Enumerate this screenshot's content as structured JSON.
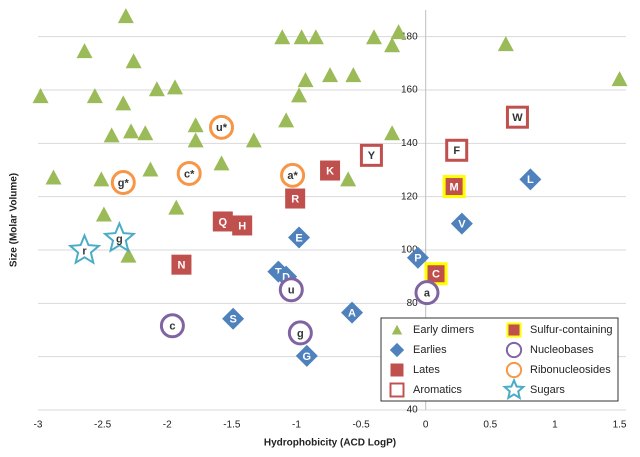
{
  "chart_data": {
    "type": "scatter",
    "x_label": "Hydrophobicity (ACD LogP)",
    "y_label": "Size (Molar Volume)",
    "xlim": [
      -3,
      1.55
    ],
    "ylim": [
      40,
      190
    ],
    "xticks": [
      -3,
      -2.5,
      -2,
      -1.5,
      -1,
      -0.5,
      0,
      0.5,
      1,
      1.5
    ],
    "yticks": [
      40,
      60,
      80,
      100,
      120,
      140,
      160,
      180
    ],
    "grid": true,
    "legend": "lower right",
    "series": [
      {
        "name": "Early dimers",
        "marker": "triangle",
        "color": "#9bbb59",
        "x": [
          -2.32,
          -2.64,
          -2.26,
          -2.98,
          -2.56,
          -2.34,
          -2.08,
          -1.94,
          -1.11,
          -0.96,
          -0.85,
          -0.4,
          -0.21,
          -0.26,
          -0.74,
          -0.56,
          -0.93,
          -0.98,
          -1.08,
          -1.33,
          -1.78,
          -1.78,
          -2.28,
          -2.43,
          -2.17,
          -1.58,
          -2.13,
          -2.51,
          -2.88,
          -0.6,
          -0.26,
          -1.93,
          -2.49,
          -2.3,
          1.5,
          0.62
        ],
        "values": [
          187.7,
          174.6,
          170.8,
          157.7,
          157.7,
          155,
          160.3,
          161,
          179.8,
          179.8,
          179.8,
          179.8,
          181.7,
          176.8,
          165.6,
          165.6,
          163.7,
          158,
          148.6,
          141.1,
          146.8,
          141.1,
          144.5,
          143,
          143.8,
          132.5,
          130.2,
          126.5,
          127.2,
          126.5,
          143.8,
          115.9,
          113.3,
          97.9,
          164.1,
          177.2
        ]
      },
      {
        "name": "Earlies",
        "marker": "diamond",
        "color": "#4f81bd",
        "x": [
          0.81,
          0.28,
          -0.98,
          -0.06,
          -1.14,
          -1.08,
          -0.57,
          -1.49,
          -0.92
        ],
        "values": [
          126.5,
          109.9,
          104.7,
          97.1,
          91.9,
          90,
          76.5,
          74.2,
          60.3
        ],
        "labels": [
          "L",
          "V",
          "E",
          "P",
          "T",
          "D",
          "A",
          "S",
          "G"
        ]
      },
      {
        "name": "Lates",
        "marker": "square",
        "color": "#c0504d",
        "x": [
          -0.74,
          -1.01,
          -1.57,
          -1.42,
          -1.89
        ],
        "values": [
          129.8,
          119.3,
          110.7,
          109.2,
          94.5
        ],
        "labels": [
          "K",
          "R",
          "Q",
          "H",
          "N"
        ]
      },
      {
        "name": "Aromatics",
        "marker": "open-square",
        "color": "#c0504d",
        "x": [
          0.71,
          0.24,
          -0.42
        ],
        "values": [
          149.8,
          137.4,
          135.5
        ],
        "labels": [
          "W",
          "F",
          "Y"
        ]
      },
      {
        "name": "Sulfur-containing",
        "marker": "sulfur-square",
        "color": "#c0504d",
        "x": [
          0.22,
          0.08
        ],
        "values": [
          123.8,
          91.1
        ],
        "labels": [
          "M",
          "C"
        ]
      },
      {
        "name": "Nucleobases",
        "marker": "circle",
        "color": "#8064a2",
        "x": [
          -1.04,
          0.01,
          -1.96,
          -0.97
        ],
        "values": [
          85.1,
          84,
          71.6,
          68.9
        ],
        "labels": [
          "u",
          "a",
          "c",
          "g"
        ]
      },
      {
        "name": "Ribonucleosides",
        "marker": "circle",
        "color": "#f79646",
        "x": [
          -1.58,
          -1.83,
          -1.03,
          -2.34
        ],
        "values": [
          146,
          128.7,
          128,
          125.3
        ],
        "labels": [
          "u*",
          "c*",
          "a*",
          "g*"
        ]
      },
      {
        "name": "Sugars",
        "marker": "star",
        "color": "#4bacc6",
        "x": [
          -2.64,
          -2.37
        ],
        "values": [
          99.8,
          104.3
        ],
        "labels": [
          "r",
          "g"
        ]
      }
    ]
  }
}
